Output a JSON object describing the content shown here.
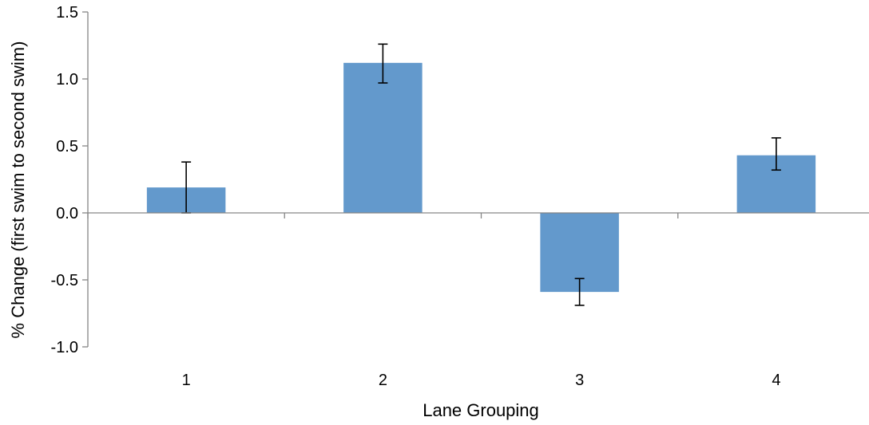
{
  "chart_data": {
    "type": "bar",
    "categories": [
      "1",
      "2",
      "3",
      "4"
    ],
    "values": [
      0.19,
      1.12,
      -0.59,
      0.43
    ],
    "error_bars": {
      "upper": [
        0.38,
        1.26,
        -0.49,
        0.56
      ],
      "lower": [
        0.0,
        0.97,
        -0.69,
        0.32
      ]
    },
    "xlabel": "Lane Grouping",
    "ylabel": "% Change (first swim to second swim)",
    "ylim": [
      -1.0,
      1.5
    ],
    "yticks": [
      "1.5",
      "1.0",
      "0.5",
      "0.0",
      "-0.5",
      "-1.0"
    ],
    "ytick_values": [
      1.5,
      1.0,
      0.5,
      0.0,
      -0.5,
      -1.0
    ],
    "grid": false,
    "legend": "none",
    "colors": {
      "bar": "#6399CC",
      "axis": "#868686",
      "error": "#000000"
    }
  }
}
